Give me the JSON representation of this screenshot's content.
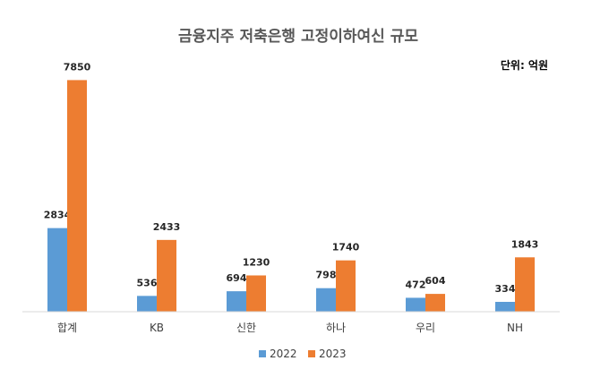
{
  "chart_data": {
    "type": "bar",
    "title": "금융지주 저축은행 고정이하여신 규모",
    "unit_label": "단위: 억원",
    "categories": [
      "합계",
      "KB",
      "신한",
      "하나",
      "우리",
      "NH"
    ],
    "series": [
      {
        "name": "2022",
        "values": [
          2834,
          536,
          694,
          798,
          472,
          334
        ],
        "color": "#5B9BD5"
      },
      {
        "name": "2023",
        "values": [
          7850,
          2433,
          1230,
          1740,
          604,
          1843
        ],
        "color": "#ED7D31"
      }
    ],
    "ylim": [
      0,
      8500
    ],
    "grid": false,
    "legend_position": "bottom"
  }
}
